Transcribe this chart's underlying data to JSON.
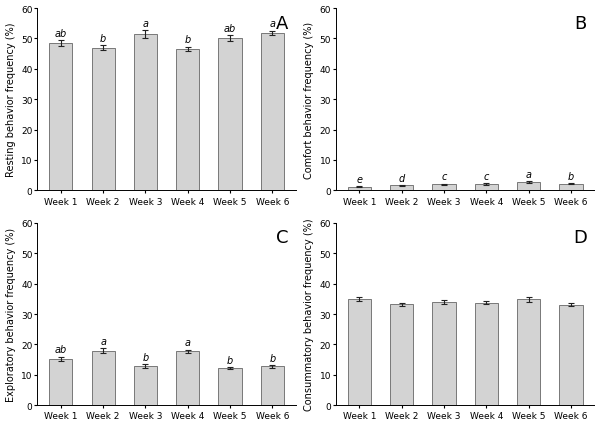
{
  "panels": [
    {
      "label": "A",
      "ylabel": "Resting behavior frequency (%)",
      "ylim": [
        0,
        60
      ],
      "yticks": [
        0,
        10,
        20,
        30,
        40,
        50,
        60
      ],
      "values": [
        48.5,
        47.0,
        51.5,
        46.5,
        50.0,
        51.8
      ],
      "errors": [
        1.0,
        0.8,
        1.2,
        0.8,
        1.0,
        0.8
      ],
      "sig_labels": [
        "ab",
        "b",
        "a",
        "b",
        "ab",
        "a"
      ]
    },
    {
      "label": "B",
      "ylabel": "Comfort behavior frequency (%)",
      "ylim": [
        0,
        60
      ],
      "yticks": [
        0,
        10,
        20,
        30,
        40,
        50,
        60
      ],
      "values": [
        1.2,
        1.6,
        2.0,
        2.1,
        2.8,
        2.2
      ],
      "errors": [
        0.15,
        0.2,
        0.2,
        0.2,
        0.3,
        0.2
      ],
      "sig_labels": [
        "e",
        "d",
        "c",
        "c",
        "a",
        "b"
      ]
    },
    {
      "label": "C",
      "ylabel": "Exploratory behavior frequency (%)",
      "ylim": [
        0,
        60
      ],
      "yticks": [
        0,
        10,
        20,
        30,
        40,
        50,
        60
      ],
      "values": [
        15.2,
        18.0,
        12.8,
        17.8,
        12.2,
        12.8
      ],
      "errors": [
        0.8,
        0.7,
        0.6,
        0.5,
        0.4,
        0.5
      ],
      "sig_labels": [
        "ab",
        "a",
        "b",
        "a",
        "b",
        "b"
      ]
    },
    {
      "label": "D",
      "ylabel": "Consummatory behavior frequency (%)",
      "ylim": [
        0,
        60
      ],
      "yticks": [
        0,
        10,
        20,
        30,
        40,
        50,
        60
      ],
      "values": [
        35.0,
        33.3,
        34.0,
        33.8,
        34.8,
        33.0
      ],
      "errors": [
        0.7,
        0.5,
        0.7,
        0.6,
        0.9,
        0.5
      ],
      "sig_labels": [
        "",
        "",
        "",
        "",
        "",
        ""
      ]
    }
  ],
  "categories": [
    "Week 1",
    "Week 2",
    "Week 3",
    "Week 4",
    "Week 5",
    "Week 6"
  ],
  "bar_color": "#d3d3d3",
  "bar_edge_color": "#666666",
  "error_color": "#222222",
  "sig_label_fontsize": 7,
  "tick_label_fontsize": 6.5,
  "ylabel_fontsize": 7,
  "panel_label_fontsize": 13
}
